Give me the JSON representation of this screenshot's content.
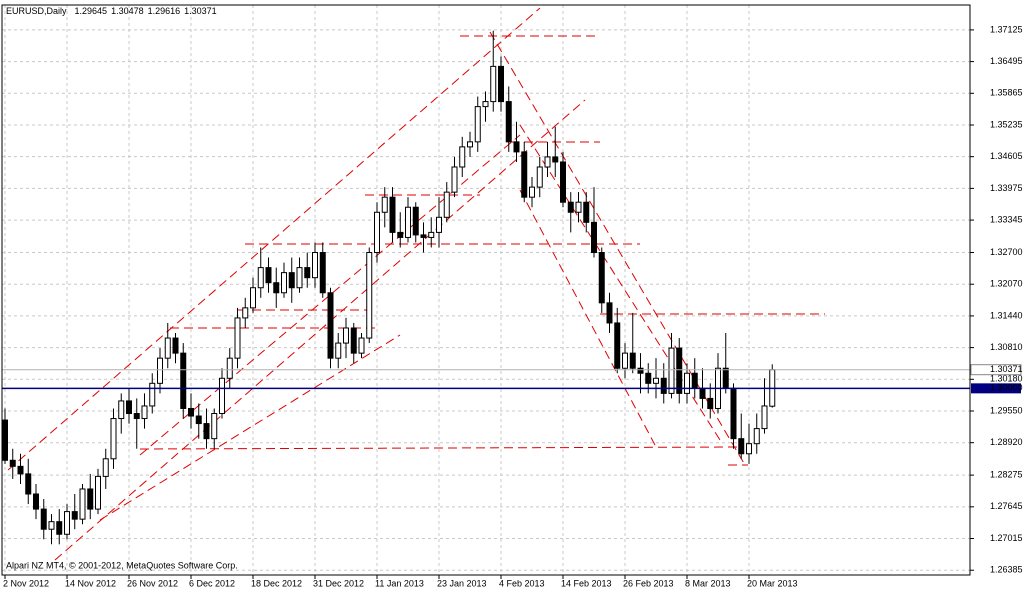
{
  "chart_data": {
    "type": "candlestick",
    "title": "EURUSD,Daily",
    "footer": "Alpari NZ MT4, © 2001-2012, MetaQuotes Software Corp.",
    "categories": [
      "2 Nov 2012",
      null,
      null,
      null,
      null,
      null,
      null,
      null,
      "14 Nov 2012",
      null,
      null,
      null,
      null,
      null,
      null,
      null,
      "26 Nov 2012",
      null,
      null,
      null,
      null,
      null,
      null,
      null,
      "6 Dec 2012",
      null,
      null,
      null,
      null,
      null,
      null,
      null,
      "18 Dec 2012",
      null,
      null,
      null,
      null,
      null,
      null,
      null,
      "31 Dec 2012",
      null,
      null,
      null,
      null,
      null,
      null,
      null,
      "11 Jan 2013",
      null,
      null,
      null,
      null,
      null,
      null,
      null,
      "23 Jan 2013",
      null,
      null,
      null,
      null,
      null,
      null,
      null,
      "4 Feb 2013",
      null,
      null,
      null,
      null,
      null,
      null,
      null,
      "14 Feb 2013",
      null,
      null,
      null,
      null,
      null,
      null,
      null,
      "26 Feb 2013",
      null,
      null,
      null,
      null,
      null,
      null,
      null,
      "8 Mar 2013",
      null,
      null,
      null,
      null,
      null,
      null,
      null,
      "20 Mar 2013",
      null,
      null,
      null
    ],
    "open": [
      1.2937,
      1.2857,
      1.2845,
      1.283,
      1.279,
      1.276,
      1.272,
      1.2735,
      1.271,
      1.2755,
      1.274,
      1.28,
      1.276,
      1.2825,
      1.286,
      1.294,
      1.2975,
      1.295,
      1.294,
      1.2965,
      1.301,
      1.306,
      1.31,
      1.307,
      1.296,
      1.2945,
      1.293,
      1.29,
      1.295,
      1.302,
      1.306,
      1.314,
      1.316,
      1.32,
      1.324,
      1.321,
      1.319,
      1.323,
      1.32,
      1.324,
      1.322,
      1.327,
      1.319,
      1.306,
      1.309,
      1.312,
      1.307,
      1.31,
      1.327,
      1.335,
      1.338,
      1.331,
      1.33,
      1.336,
      1.3305,
      1.33,
      1.331,
      1.334,
      1.339,
      1.344,
      1.348,
      1.349,
      1.356,
      1.357,
      1.364,
      1.357,
      1.349,
      1.347,
      1.338,
      1.34,
      1.344,
      1.346,
      1.345,
      1.337,
      1.335,
      1.337,
      1.333,
      1.327,
      1.317,
      1.313,
      1.304,
      1.307,
      1.304,
      1.303,
      1.301,
      1.302,
      1.299,
      1.308,
      1.299,
      1.303,
      1.3,
      1.298,
      1.296,
      1.304,
      1.3,
      1.29,
      1.287,
      1.289,
      1.292,
      1.29645
    ],
    "high": [
      1.296,
      1.288,
      1.287,
      1.286,
      1.281,
      1.278,
      1.275,
      1.276,
      1.277,
      1.279,
      1.281,
      1.283,
      1.284,
      1.288,
      1.296,
      1.299,
      1.3,
      1.298,
      1.299,
      1.303,
      1.308,
      1.313,
      1.311,
      1.309,
      1.299,
      1.297,
      1.296,
      1.296,
      1.304,
      1.308,
      1.316,
      1.318,
      1.322,
      1.328,
      1.326,
      1.324,
      1.325,
      1.326,
      1.326,
      1.327,
      1.329,
      1.329,
      1.32,
      1.311,
      1.314,
      1.313,
      1.311,
      1.328,
      1.337,
      1.34,
      1.34,
      1.335,
      1.338,
      1.337,
      1.333,
      1.334,
      1.338,
      1.341,
      1.346,
      1.35,
      1.351,
      1.358,
      1.359,
      1.3711,
      1.366,
      1.36,
      1.353,
      1.349,
      1.342,
      1.346,
      1.349,
      1.352,
      1.347,
      1.339,
      1.339,
      1.339,
      1.34,
      1.328,
      1.319,
      1.316,
      1.309,
      1.315,
      1.307,
      1.305,
      1.306,
      1.305,
      1.311,
      1.31,
      1.305,
      1.306,
      1.304,
      1.301,
      1.307,
      1.311,
      1.301,
      1.295,
      1.293,
      1.295,
      1.302,
      1.30478
    ],
    "low": [
      1.285,
      1.282,
      1.281,
      1.277,
      1.274,
      1.27,
      1.269,
      1.269,
      1.27,
      1.272,
      1.273,
      1.274,
      1.275,
      1.28,
      1.284,
      1.291,
      1.293,
      1.288,
      1.292,
      1.295,
      1.299,
      1.304,
      1.305,
      1.294,
      1.292,
      1.29,
      1.288,
      1.288,
      1.294,
      1.3,
      1.304,
      1.312,
      1.315,
      1.318,
      1.319,
      1.316,
      1.318,
      1.317,
      1.319,
      1.32,
      1.32,
      1.318,
      1.304,
      1.304,
      1.306,
      1.305,
      1.306,
      1.309,
      1.325,
      1.332,
      1.329,
      1.328,
      1.329,
      1.329,
      1.327,
      1.328,
      1.328,
      1.333,
      1.338,
      1.342,
      1.346,
      1.347,
      1.353,
      1.355,
      1.355,
      1.347,
      1.345,
      1.337,
      1.336,
      1.338,
      1.342,
      1.342,
      1.336,
      1.331,
      1.333,
      1.331,
      1.326,
      1.315,
      1.311,
      1.303,
      1.302,
      1.303,
      1.299,
      1.299,
      1.298,
      1.297,
      1.298,
      1.297,
      1.297,
      1.298,
      1.296,
      1.294,
      1.295,
      1.299,
      1.288,
      1.286,
      1.285,
      1.287,
      1.291,
      1.29616
    ],
    "close": [
      1.2857,
      1.2845,
      1.283,
      1.279,
      1.276,
      1.272,
      1.2735,
      1.271,
      1.2755,
      1.274,
      1.28,
      1.276,
      1.2825,
      1.286,
      1.294,
      1.2975,
      1.295,
      1.294,
      1.2965,
      1.301,
      1.306,
      1.31,
      1.307,
      1.296,
      1.2945,
      1.293,
      1.29,
      1.295,
      1.302,
      1.306,
      1.314,
      1.316,
      1.32,
      1.324,
      1.321,
      1.319,
      1.323,
      1.32,
      1.324,
      1.322,
      1.327,
      1.319,
      1.306,
      1.309,
      1.312,
      1.307,
      1.31,
      1.327,
      1.335,
      1.338,
      1.331,
      1.33,
      1.336,
      1.3305,
      1.33,
      1.331,
      1.334,
      1.339,
      1.344,
      1.348,
      1.349,
      1.356,
      1.357,
      1.364,
      1.357,
      1.349,
      1.347,
      1.338,
      1.34,
      1.344,
      1.346,
      1.345,
      1.337,
      1.335,
      1.337,
      1.333,
      1.327,
      1.317,
      1.313,
      1.304,
      1.307,
      1.304,
      1.303,
      1.301,
      1.302,
      1.299,
      1.308,
      1.299,
      1.303,
      1.3,
      1.298,
      1.296,
      1.304,
      1.3,
      1.29,
      1.287,
      1.289,
      1.292,
      1.2965,
      1.30371
    ],
    "ylim": [
      1.2629,
      1.3762
    ],
    "yticks": [
      1.37125,
      1.36495,
      1.35865,
      1.35235,
      1.34605,
      1.33975,
      1.33345,
      {
        "value": 1.327,
        "label": "1.32700"
      },
      {
        "value": 1.3207,
        "label": "1.32070"
      },
      {
        "value": 1.3144,
        "label": "1.31440"
      },
      {
        "value": 1.3081,
        "label": "1.30810"
      },
      {
        "value": 1.3018,
        "label": "1.30180"
      },
      {
        "value": 1.2955,
        "label": "1.29550"
      },
      {
        "value": 1.2892,
        "label": "1.28920"
      },
      1.28275,
      1.27645,
      1.27015,
      1.26385
    ],
    "hline": {
      "value": 1.3,
      "label": "1.30000",
      "color": "#000080"
    },
    "grid": true,
    "color": "#000000"
  }
}
